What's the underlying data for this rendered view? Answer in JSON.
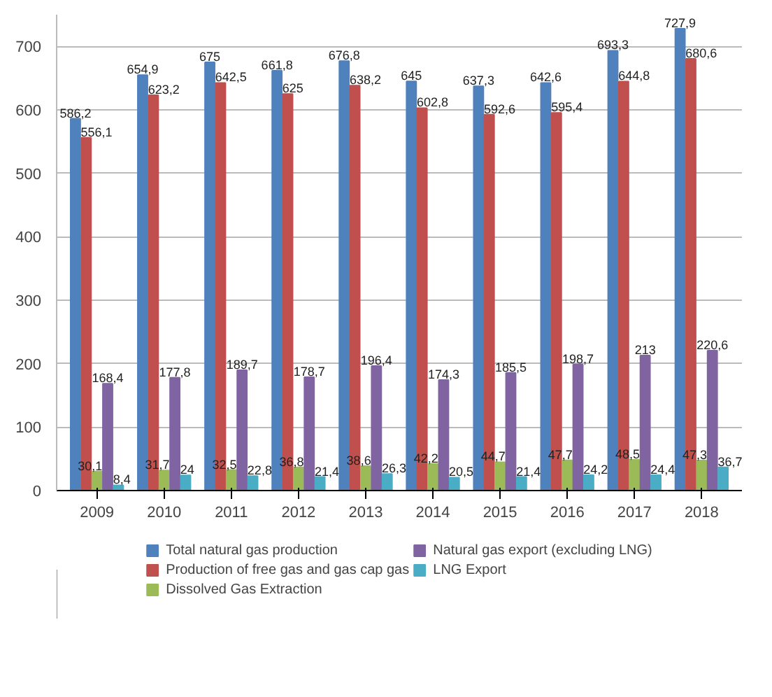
{
  "chart_data": {
    "type": "bar",
    "categories": [
      "2009",
      "2010",
      "2011",
      "2012",
      "2013",
      "2014",
      "2015",
      "2016",
      "2017",
      "2018"
    ],
    "series": [
      {
        "name": "Total natural gas production",
        "color": "#4f81bd",
        "values": [
          586.2,
          654.9,
          675,
          661.8,
          676.8,
          645,
          637.3,
          642.6,
          693.3,
          727.9
        ],
        "value_labels": [
          "586,2",
          "654,9",
          "675",
          "661,8",
          "676,8",
          "645",
          "637,3",
          "642,6",
          "693,3",
          "727,9"
        ]
      },
      {
        "name": "Production of free gas and gas cap gas",
        "color": "#c0504d",
        "values": [
          556.1,
          623.2,
          642.5,
          625,
          638.2,
          602.8,
          592.6,
          595.4,
          644.8,
          680.6
        ],
        "value_labels": [
          "556,1",
          "623,2",
          "642,5",
          "625",
          "638,2",
          "602,8",
          "592,6",
          "595,4",
          "644,8",
          "680,6"
        ]
      },
      {
        "name": "Dissolved Gas Extraction",
        "color": "#9bbb59",
        "values": [
          30.1,
          31.7,
          32.5,
          36.8,
          38.6,
          42.2,
          44.7,
          47.7,
          48.5,
          47.3
        ],
        "value_labels": [
          "30,1",
          "31,7",
          "32,5",
          "36,8",
          "38,6",
          "42,2",
          "44,7",
          "47,7",
          "48,5",
          "47,3"
        ]
      },
      {
        "name": "Natural gas export (excluding LNG)",
        "color": "#8064a2",
        "values": [
          168.4,
          177.8,
          189.7,
          178.7,
          196.4,
          174.3,
          185.5,
          198.7,
          213,
          220.6
        ],
        "value_labels": [
          "168,4",
          "177,8",
          "189,7",
          "178,7",
          "196,4",
          "174,3",
          "185,5",
          "198,7",
          "213",
          "220,6"
        ]
      },
      {
        "name": "LNG Export",
        "color": "#4bacc6",
        "values": [
          8.4,
          24,
          22.8,
          21.4,
          26.3,
          20.5,
          21.4,
          24.2,
          24.4,
          36.7
        ],
        "value_labels": [
          "8,4",
          "24",
          "22,8",
          "21,4",
          "26,3",
          "20,5",
          "21,4",
          "24,2",
          "24,4",
          "36,7"
        ]
      }
    ],
    "ylim": [
      0,
      750
    ],
    "yticks": [
      0,
      100,
      200,
      300,
      400,
      500,
      600,
      700
    ],
    "grid": "y",
    "legend": "bottom"
  }
}
